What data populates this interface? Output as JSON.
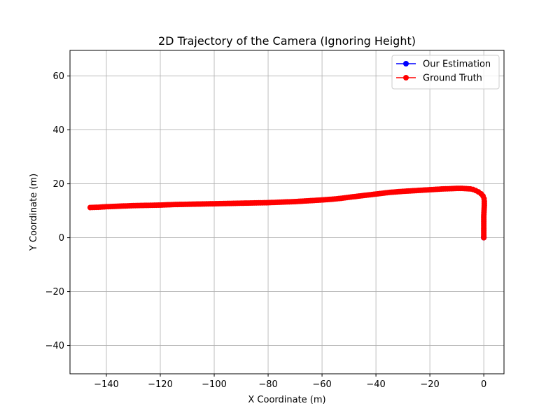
{
  "chart_data": {
    "type": "line",
    "title": "2D Trajectory of the Camera (Ignoring Height)",
    "xlabel": "X Coordinate (m)",
    "ylabel": "Y Coordinate (m)",
    "xlim": [
      -153.5,
      7.5
    ],
    "ylim": [
      -50.5,
      69.5
    ],
    "xticks": [
      -140,
      -120,
      -100,
      -80,
      -60,
      -40,
      -20,
      0
    ],
    "xtick_labels": [
      "−140",
      "−120",
      "−100",
      "−80",
      "−60",
      "−40",
      "−20",
      "0"
    ],
    "yticks": [
      -40,
      -20,
      0,
      20,
      40,
      60
    ],
    "ytick_labels": [
      "−40",
      "−20",
      "0",
      "20",
      "40",
      "60"
    ],
    "grid": true,
    "legend_position": "top-right",
    "series": [
      {
        "name": "Our Estimation",
        "color": "#0000ff",
        "marker": "circle",
        "x": [
          0,
          0,
          0
        ],
        "y": [
          0,
          0.1,
          0.2
        ]
      },
      {
        "name": "Ground Truth",
        "color": "#ff0000",
        "marker": "circle",
        "x": [
          0,
          0,
          0,
          0,
          0,
          0.1,
          0.2,
          0.2,
          0.1,
          -0.3,
          -1,
          -2,
          -3,
          -4,
          -5,
          -6.5,
          -8,
          -10,
          -12,
          -15,
          -20,
          -25,
          -30,
          -35,
          -40,
          -45,
          -50,
          -53,
          -56,
          -60,
          -65,
          -70,
          -75,
          -80,
          -85,
          -90,
          -95,
          -100,
          -105,
          -110,
          -115,
          -120,
          -125,
          -130,
          -135,
          -140,
          -143,
          -146
        ],
        "y": [
          0,
          2,
          4,
          6,
          8,
          10,
          12,
          13.5,
          14.5,
          15.5,
          16.3,
          17,
          17.5,
          17.9,
          18.1,
          18.2,
          18.3,
          18.3,
          18.2,
          18.1,
          17.8,
          17.5,
          17.2,
          16.8,
          16.2,
          15.6,
          15,
          14.6,
          14.3,
          14,
          13.7,
          13.4,
          13.2,
          13,
          12.9,
          12.8,
          12.7,
          12.6,
          12.5,
          12.4,
          12.3,
          12.1,
          12,
          11.9,
          11.7,
          11.5,
          11.3,
          11.2
        ]
      }
    ]
  }
}
